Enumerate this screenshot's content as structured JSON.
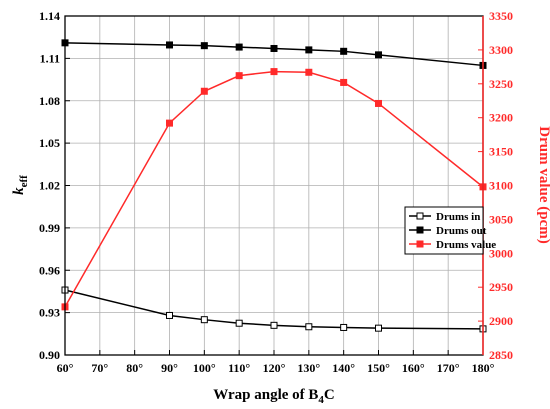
{
  "chart_data": {
    "type": "line",
    "x": [
      60,
      90,
      100,
      110,
      120,
      130,
      140,
      150,
      180
    ],
    "xlabel_prefix": "Wrap angle of B",
    "xlabel_sub": "4",
    "xlabel_suffix": "C",
    "xlim": [
      60,
      180
    ],
    "xticks": [
      "60°",
      "70°",
      "80°",
      "90°",
      "100°",
      "110°",
      "120°",
      "130°",
      "140°",
      "150°",
      "160°",
      "170°",
      "180°"
    ],
    "y_left": {
      "label_main": "k",
      "label_sub": "eff",
      "lim": [
        0.9,
        1.14
      ],
      "ticks": [
        "0.90",
        "0.93",
        "0.96",
        "0.99",
        "1.02",
        "1.05",
        "1.08",
        "1.11",
        "1.14"
      ]
    },
    "y_right": {
      "label": "Drum value (pcm)",
      "lim": [
        2850,
        3350
      ],
      "ticks": [
        "2850",
        "2900",
        "2950",
        "3000",
        "3050",
        "3100",
        "3150",
        "3200",
        "3250",
        "3300",
        "3350"
      ],
      "color": "#ff2a2a"
    },
    "series": [
      {
        "name": "Drums in",
        "axis": "left",
        "marker": "open-square",
        "color": "#000000",
        "values": [
          0.946,
          0.928,
          0.925,
          0.9225,
          0.921,
          0.92,
          0.9195,
          0.919,
          0.9185
        ]
      },
      {
        "name": "Drums out",
        "axis": "left",
        "marker": "filled-square",
        "color": "#000000",
        "values": [
          1.121,
          1.1195,
          1.119,
          1.118,
          1.117,
          1.116,
          1.115,
          1.1125,
          1.105
        ]
      },
      {
        "name": "Drums value",
        "axis": "right",
        "marker": "filled-square",
        "color": "#ff2a2a",
        "values": [
          2921,
          3192,
          3239,
          3262,
          3268,
          3267,
          3252,
          3221,
          3098
        ]
      }
    ],
    "legend_position": "center-right"
  }
}
